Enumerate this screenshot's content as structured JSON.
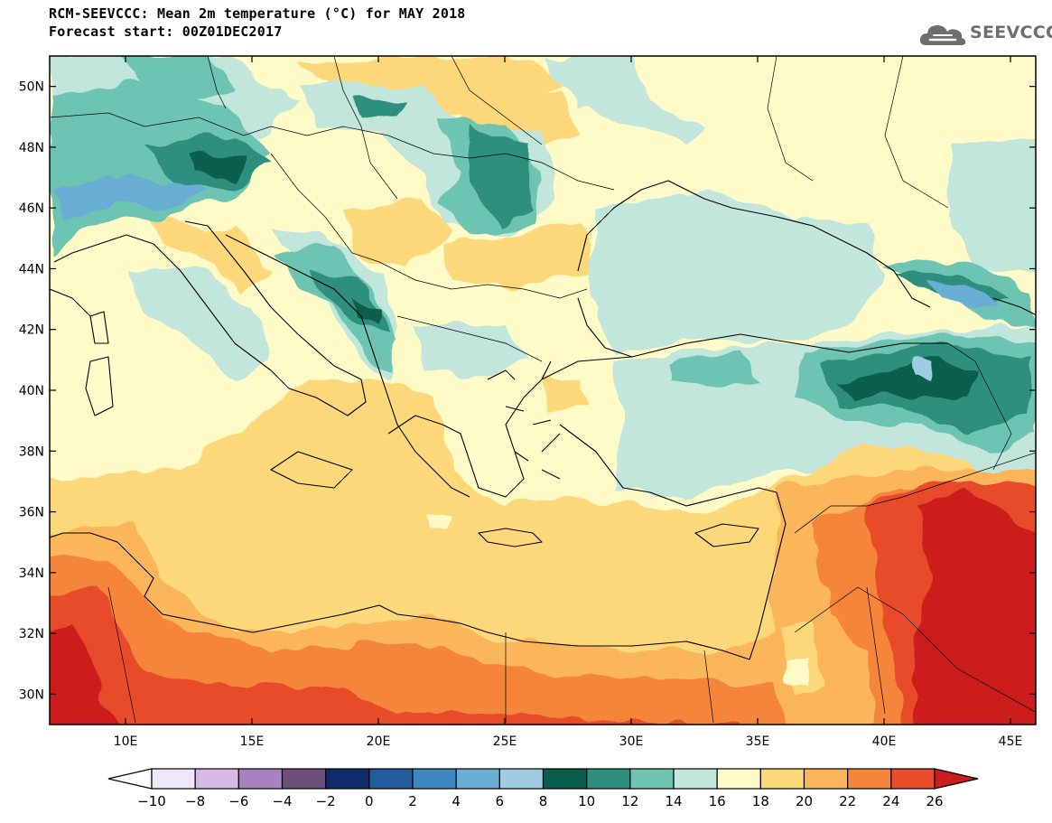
{
  "title": {
    "line1": "RCM-SEEVCCC: Mean 2m temperature (°C) for MAY 2018",
    "line2": "Forecast start: 00Z01DEC2017"
  },
  "logo": {
    "text": "SEEVCCC",
    "icon": "cloud-logo-icon"
  },
  "map": {
    "lon_range": [
      7,
      46
    ],
    "lat_range": [
      29,
      51
    ],
    "lat_ticks": [
      "30N",
      "32N",
      "34N",
      "36N",
      "38N",
      "40N",
      "42N",
      "44N",
      "46N",
      "48N",
      "50N"
    ],
    "lon_ticks": [
      "10E",
      "15E",
      "20E",
      "25E",
      "30E",
      "35E",
      "40E",
      "45E"
    ],
    "field": "Mean 2m temperature",
    "units": "°C"
  },
  "colorbar": {
    "labels": [
      "−10",
      "−8",
      "−6",
      "−4",
      "−2",
      "0",
      "2",
      "4",
      "6",
      "8",
      "10",
      "12",
      "14",
      "16",
      "18",
      "20",
      "22",
      "24",
      "26"
    ],
    "colors": [
      "#ffffff",
      "#f0e6fa",
      "#d8b8e6",
      "#a882c0",
      "#6e4f7a",
      "#0d2c6e",
      "#235c9c",
      "#3e88c1",
      "#6aaed6",
      "#9fcbe3",
      "#0b5e4e",
      "#2e8f7e",
      "#6ec4b2",
      "#c2e6dc",
      "#fffbc8",
      "#fdd87a",
      "#fbb55a",
      "#f4853b",
      "#e84c2a",
      "#cc1d1d"
    ]
  }
}
